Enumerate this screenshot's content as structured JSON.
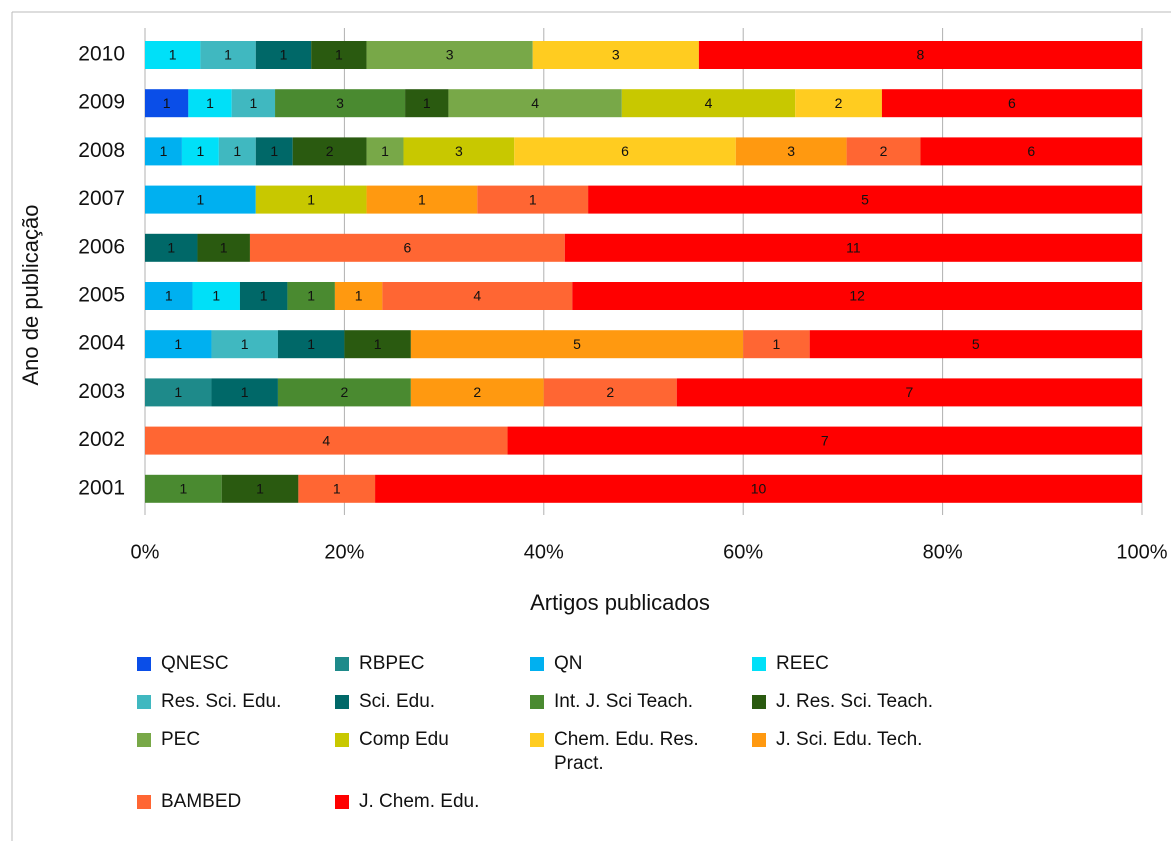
{
  "chart_data": {
    "type": "bar",
    "orientation": "horizontal",
    "stacked": "percent",
    "ylabel": "Ano de publicação",
    "xlabel": "Artigos publicados",
    "categories": [
      "2010",
      "2009",
      "2008",
      "2007",
      "2006",
      "2005",
      "2004",
      "2003",
      "2002",
      "2001"
    ],
    "xlim": [
      0,
      100
    ],
    "xticks": [
      {
        "value": 0,
        "label": "0%"
      },
      {
        "value": 20,
        "label": "20%"
      },
      {
        "value": 40,
        "label": "40%"
      },
      {
        "value": 60,
        "label": "60%"
      },
      {
        "value": 80,
        "label": "80%"
      },
      {
        "value": 100,
        "label": "100%"
      }
    ],
    "grid": true,
    "series": [
      {
        "name": "QNESC",
        "color": "#0a4ee8",
        "values": [
          null,
          1,
          null,
          null,
          null,
          null,
          null,
          null,
          null,
          null
        ]
      },
      {
        "name": "RBPEC",
        "color": "#1e8a8a",
        "values": [
          null,
          null,
          null,
          null,
          null,
          null,
          null,
          1,
          null,
          null
        ]
      },
      {
        "name": "QN",
        "color": "#00b0f0",
        "values": [
          null,
          null,
          1,
          1,
          null,
          1,
          1,
          null,
          null,
          null
        ]
      },
      {
        "name": "REEC",
        "color": "#00e0f8",
        "values": [
          1,
          1,
          1,
          null,
          null,
          1,
          null,
          null,
          null,
          null
        ]
      },
      {
        "name": "Res. Sci. Edu.",
        "color": "#40b8c0",
        "values": [
          1,
          1,
          1,
          null,
          null,
          null,
          1,
          null,
          null,
          null
        ]
      },
      {
        "name": "Sci. Edu.",
        "color": "#006868",
        "values": [
          1,
          null,
          1,
          null,
          1,
          1,
          1,
          1,
          null,
          null
        ]
      },
      {
        "name": "Int. J. Sci Teach.",
        "color": "#4a8a30",
        "values": [
          null,
          3,
          null,
          null,
          null,
          1,
          null,
          2,
          null,
          1
        ]
      },
      {
        "name": "J. Res. Sci. Teach.",
        "color": "#2a5a10",
        "values": [
          1,
          1,
          2,
          null,
          1,
          null,
          1,
          null,
          null,
          1
        ]
      },
      {
        "name": "PEC",
        "color": "#78a848",
        "values": [
          3,
          4,
          1,
          null,
          null,
          null,
          null,
          null,
          null,
          null
        ]
      },
      {
        "name": "Comp Edu",
        "color": "#c8c800",
        "values": [
          null,
          4,
          3,
          1,
          null,
          null,
          null,
          null,
          null,
          null
        ]
      },
      {
        "name": "Chem. Edu. Res. Pract.",
        "color": "#ffcc20",
        "values": [
          3,
          2,
          6,
          null,
          null,
          null,
          null,
          null,
          null,
          null
        ]
      },
      {
        "name": "J. Sci. Edu. Tech.",
        "color": "#ff9910",
        "values": [
          null,
          null,
          3,
          1,
          null,
          1,
          5,
          2,
          null,
          null
        ]
      },
      {
        "name": "BAMBED",
        "color": "#ff6633",
        "values": [
          null,
          null,
          2,
          1,
          6,
          4,
          1,
          2,
          4,
          1
        ]
      },
      {
        "name": "J. Chem. Edu.",
        "color": "#ff0000",
        "values": [
          8,
          6,
          6,
          5,
          11,
          12,
          5,
          7,
          7,
          10
        ]
      }
    ]
  }
}
